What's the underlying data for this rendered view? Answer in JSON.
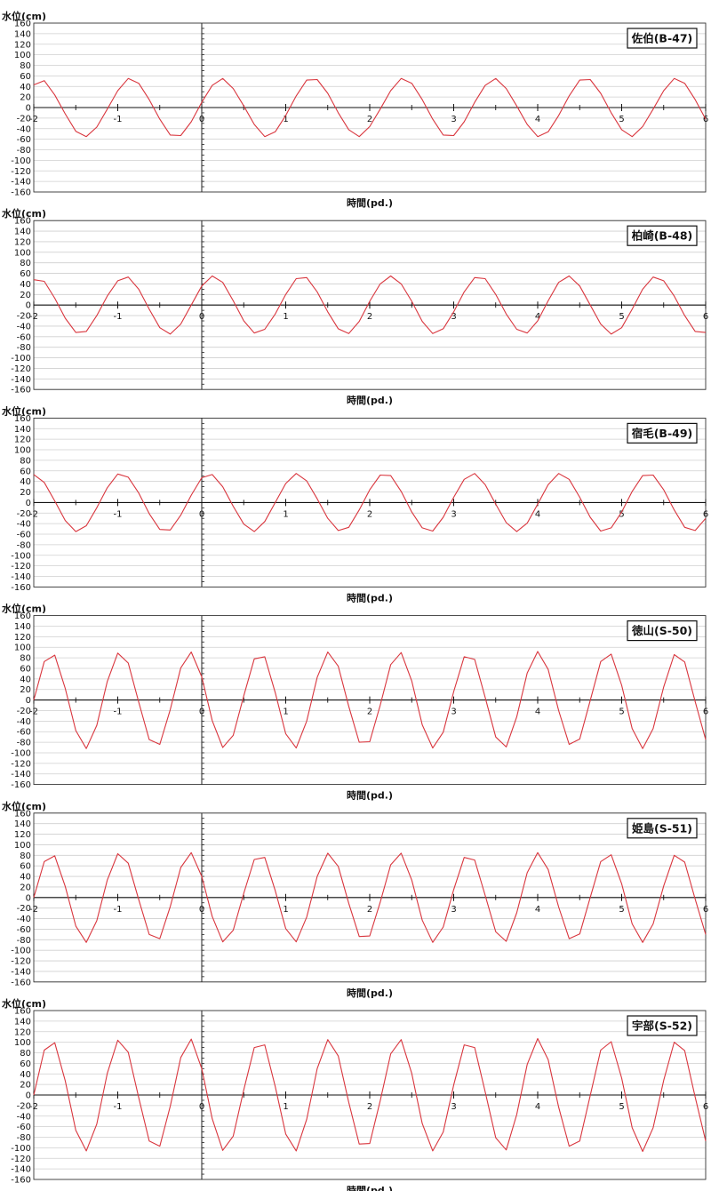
{
  "figure": {
    "ylabel": "水位(cm)",
    "xlabel": "時間(pd.)"
  },
  "chart_data": [
    {
      "type": "line",
      "title": "佐伯(B-47)",
      "xlabel": "時間(pd.)",
      "ylabel": "水位(cm)",
      "xlim": [
        -2,
        6
      ],
      "ylim": [
        -160,
        160
      ],
      "xticks": [
        -2,
        -1,
        0,
        1,
        2,
        3,
        4,
        5,
        6
      ],
      "yticks": [
        160,
        140,
        120,
        100,
        80,
        60,
        40,
        20,
        0,
        -20,
        -40,
        -60,
        -80,
        -100,
        -120,
        -140,
        -160
      ],
      "grid": true,
      "legend": "top-right",
      "series": [
        {
          "color": "#d9363e",
          "x": [
            -2.0,
            -1.875,
            -1.75,
            -1.625,
            -1.5,
            -1.375,
            -1.25,
            -1.125,
            -1.0,
            -0.875,
            -0.75,
            -0.625,
            -0.5,
            -0.375,
            -0.25,
            -0.125,
            0.0,
            0.125,
            0.25,
            0.375,
            0.5,
            0.625,
            0.75,
            0.875,
            1.0,
            1.125,
            1.25,
            1.375,
            1.5,
            1.625,
            1.75,
            1.875,
            2.0,
            2.125,
            2.25,
            2.375,
            2.5,
            2.625,
            2.75,
            2.875,
            3.0,
            3.125,
            3.25,
            3.375,
            3.5,
            3.625,
            3.75,
            3.875,
            4.0,
            4.125,
            4.25,
            4.375,
            4.5,
            4.625,
            4.75,
            4.875,
            5.0,
            5.125,
            5.25,
            5.375,
            5.5,
            5.625,
            5.75,
            5.875,
            6.0
          ],
          "values": [
            43,
            51,
            24,
            -12,
            -45,
            -55,
            -37,
            -3,
            32,
            55,
            46,
            15,
            -22,
            -52,
            -53,
            -27,
            10,
            42,
            55,
            36,
            3,
            -32,
            -55,
            -46,
            -15,
            22,
            52,
            53,
            27,
            -10,
            -42,
            -55,
            -36,
            -3,
            32,
            55,
            46,
            15,
            -22,
            -52,
            -53,
            -27,
            10,
            42,
            55,
            36,
            3,
            -32,
            -55,
            -46,
            -15,
            22,
            52,
            53,
            27,
            -10,
            -42,
            -55,
            -36,
            -3,
            32,
            55,
            46,
            15,
            -22
          ]
        }
      ]
    },
    {
      "type": "line",
      "title": "柏崎(B-48)",
      "xlabel": "時間(pd.)",
      "ylabel": "水位(cm)",
      "xlim": [
        -2,
        6
      ],
      "ylim": [
        -160,
        160
      ],
      "xticks": [
        -2,
        -1,
        0,
        1,
        2,
        3,
        4,
        5,
        6
      ],
      "yticks": [
        160,
        140,
        120,
        100,
        80,
        60,
        40,
        20,
        0,
        -20,
        -40,
        -60,
        -80,
        -100,
        -120,
        -140,
        -160
      ],
      "grid": true,
      "legend": "top-right",
      "series": [
        {
          "color": "#d9363e",
          "x": [
            -2.0,
            -1.875,
            -1.75,
            -1.625,
            -1.5,
            -1.375,
            -1.25,
            -1.125,
            -1.0,
            -0.875,
            -0.75,
            -0.625,
            -0.5,
            -0.375,
            -0.25,
            -0.125,
            0.0,
            0.125,
            0.25,
            0.375,
            0.5,
            0.625,
            0.75,
            0.875,
            1.0,
            1.125,
            1.25,
            1.375,
            1.5,
            1.625,
            1.75,
            1.875,
            2.0,
            2.125,
            2.25,
            2.375,
            2.5,
            2.625,
            2.75,
            2.875,
            3.0,
            3.125,
            3.25,
            3.375,
            3.5,
            3.625,
            3.75,
            3.875,
            4.0,
            4.125,
            4.25,
            4.375,
            4.5,
            4.625,
            4.75,
            4.875,
            5.0,
            5.125,
            5.25,
            5.375,
            5.5,
            5.625,
            5.75,
            5.875,
            6.0
          ],
          "values": [
            48,
            45,
            13,
            -25,
            -52,
            -50,
            -20,
            17,
            46,
            53,
            30,
            -8,
            -43,
            -55,
            -36,
            0,
            36,
            55,
            43,
            8,
            -30,
            -53,
            -46,
            -17,
            20,
            50,
            52,
            25,
            -13,
            -45,
            -54,
            -31,
            7,
            40,
            55,
            40,
            7,
            -31,
            -54,
            -45,
            -13,
            25,
            52,
            50,
            20,
            -17,
            -46,
            -53,
            -30,
            8,
            43,
            55,
            36,
            0,
            -36,
            -55,
            -43,
            -8,
            30,
            53,
            46,
            17,
            -20,
            -50,
            -52
          ]
        }
      ]
    },
    {
      "type": "line",
      "title": "宿毛(B-49)",
      "xlabel": "時間(pd.)",
      "ylabel": "水位(cm)",
      "xlim": [
        -2,
        6
      ],
      "ylim": [
        -160,
        160
      ],
      "xticks": [
        -2,
        -1,
        0,
        1,
        2,
        3,
        4,
        5,
        6
      ],
      "yticks": [
        160,
        140,
        120,
        100,
        80,
        60,
        40,
        20,
        0,
        -20,
        -40,
        -60,
        -80,
        -100,
        -120,
        -140,
        -160
      ],
      "grid": true,
      "legend": "top-right",
      "series": [
        {
          "color": "#d9363e",
          "x": [
            -2.0,
            -1.875,
            -1.75,
            -1.625,
            -1.5,
            -1.375,
            -1.25,
            -1.125,
            -1.0,
            -0.875,
            -0.75,
            -0.625,
            -0.5,
            -0.375,
            -0.25,
            -0.125,
            0.0,
            0.125,
            0.25,
            0.375,
            0.5,
            0.625,
            0.75,
            0.875,
            1.0,
            1.125,
            1.25,
            1.375,
            1.5,
            1.625,
            1.75,
            1.875,
            2.0,
            2.125,
            2.25,
            2.375,
            2.5,
            2.625,
            2.75,
            2.875,
            3.0,
            3.125,
            3.25,
            3.375,
            3.5,
            3.625,
            3.75,
            3.875,
            4.0,
            4.125,
            4.25,
            4.375,
            4.5,
            4.625,
            4.75,
            4.875,
            5.0,
            5.125,
            5.25,
            5.375,
            5.5,
            5.625,
            5.75,
            5.875,
            6.0
          ],
          "values": [
            53,
            38,
            3,
            -34,
            -55,
            -44,
            -10,
            28,
            54,
            48,
            18,
            -21,
            -51,
            -52,
            -24,
            14,
            47,
            53,
            30,
            -7,
            -41,
            -55,
            -36,
            0,
            36,
            55,
            41,
            7,
            -30,
            -53,
            -47,
            -14,
            24,
            52,
            51,
            21,
            -18,
            -48,
            -54,
            -28,
            10,
            44,
            55,
            34,
            -3,
            -38,
            -55,
            -39,
            -3,
            34,
            55,
            44,
            10,
            -28,
            -54,
            -48,
            -18,
            21,
            51,
            52,
            24,
            -14,
            -47,
            -53,
            -30
          ]
        }
      ]
    },
    {
      "type": "line",
      "title": "徳山(S-50)",
      "xlabel": "時間(pd.)",
      "ylabel": "水位(cm)",
      "xlim": [
        -2,
        6
      ],
      "ylim": [
        -160,
        160
      ],
      "xticks": [
        -2,
        -1,
        0,
        1,
        2,
        3,
        4,
        5,
        6
      ],
      "yticks": [
        160,
        140,
        120,
        100,
        80,
        60,
        40,
        20,
        0,
        -20,
        -40,
        -60,
        -80,
        -100,
        -120,
        -140,
        -160
      ],
      "grid": true,
      "legend": "top-right",
      "series": [
        {
          "color": "#d9363e",
          "x": [
            -2.0,
            -1.875,
            -1.75,
            -1.625,
            -1.5,
            -1.375,
            -1.25,
            -1.125,
            -1.0,
            -0.875,
            -0.75,
            -0.625,
            -0.5,
            -0.375,
            -0.25,
            -0.125,
            0.0,
            0.125,
            0.25,
            0.375,
            0.5,
            0.625,
            0.75,
            0.875,
            1.0,
            1.125,
            1.25,
            1.375,
            1.5,
            1.625,
            1.75,
            1.875,
            2.0,
            2.125,
            2.25,
            2.375,
            2.5,
            2.625,
            2.75,
            2.875,
            3.0,
            3.125,
            3.25,
            3.375,
            3.5,
            3.625,
            3.75,
            3.875,
            4.0,
            4.125,
            4.25,
            4.375,
            4.5,
            4.625,
            4.75,
            4.875,
            5.0,
            5.125,
            5.25,
            5.375,
            5.5,
            5.625,
            5.75,
            5.875,
            6.0
          ],
          "values": [
            0,
            73,
            85,
            22,
            -58,
            -92,
            -48,
            35,
            89,
            70,
            -4,
            -75,
            -84,
            -18,
            61,
            91,
            44,
            -39,
            -90,
            -67,
            8,
            78,
            82,
            14,
            -64,
            -91,
            -40,
            43,
            91,
            64,
            -12,
            -80,
            -79,
            -10,
            67,
            90,
            36,
            -47,
            -91,
            -61,
            16,
            82,
            77,
            5,
            -70,
            -89,
            -32,
            51,
            92,
            58,
            -20,
            -84,
            -74,
            -1,
            73,
            87,
            28,
            -54,
            -92,
            -54,
            25,
            86,
            72,
            -3,
            -75
          ]
        }
      ]
    },
    {
      "type": "line",
      "title": "姫島(S-51)",
      "xlabel": "時間(pd.)",
      "ylabel": "水位(cm)",
      "xlim": [
        -2,
        6
      ],
      "ylim": [
        -160,
        160
      ],
      "xticks": [
        -2,
        -1,
        0,
        1,
        2,
        3,
        4,
        5,
        6
      ],
      "yticks": [
        160,
        140,
        120,
        100,
        80,
        60,
        40,
        20,
        0,
        -20,
        -40,
        -60,
        -80,
        -100,
        -120,
        -140,
        -160
      ],
      "grid": true,
      "legend": "top-right",
      "series": [
        {
          "color": "#d9363e",
          "x": [
            -2.0,
            -1.875,
            -1.75,
            -1.625,
            -1.5,
            -1.375,
            -1.25,
            -1.125,
            -1.0,
            -0.875,
            -0.75,
            -0.625,
            -0.5,
            -0.375,
            -0.25,
            -0.125,
            0.0,
            0.125,
            0.25,
            0.375,
            0.5,
            0.625,
            0.75,
            0.875,
            1.0,
            1.125,
            1.25,
            1.375,
            1.5,
            1.625,
            1.75,
            1.875,
            2.0,
            2.125,
            2.25,
            2.375,
            2.5,
            2.625,
            2.75,
            2.875,
            3.0,
            3.125,
            3.25,
            3.375,
            3.5,
            3.625,
            3.75,
            3.875,
            4.0,
            4.125,
            4.25,
            4.375,
            4.5,
            4.625,
            4.75,
            4.875,
            5.0,
            5.125,
            5.25,
            5.375,
            5.5,
            5.625,
            5.75,
            5.875,
            6.0
          ],
          "values": [
            0,
            68,
            79,
            21,
            -54,
            -85,
            -44,
            33,
            83,
            65,
            -4,
            -70,
            -78,
            -17,
            57,
            85,
            40,
            -36,
            -84,
            -62,
            8,
            72,
            76,
            13,
            -59,
            -84,
            -37,
            40,
            84,
            59,
            -11,
            -74,
            -73,
            -9,
            62,
            84,
            33,
            -43,
            -85,
            -56,
            15,
            76,
            71,
            4,
            -65,
            -83,
            -29,
            47,
            85,
            53,
            -18,
            -78,
            -69,
            0,
            68,
            81,
            26,
            -50,
            -85,
            -50,
            22,
            80,
            67,
            -3,
            -70
          ]
        }
      ]
    },
    {
      "type": "line",
      "title": "宇部(S-52)",
      "xlabel": "時間(pd.)",
      "ylabel": "水位(cm)",
      "xlim": [
        -2,
        6
      ],
      "ylim": [
        -160,
        160
      ],
      "xticks": [
        -2,
        -1,
        0,
        1,
        2,
        3,
        4,
        5,
        6
      ],
      "yticks": [
        160,
        140,
        120,
        100,
        80,
        60,
        40,
        20,
        0,
        -20,
        -40,
        -60,
        -80,
        -100,
        -120,
        -140,
        -160
      ],
      "grid": true,
      "legend": "top-right",
      "series": [
        {
          "color": "#d9363e",
          "x": [
            -2.0,
            -1.875,
            -1.75,
            -1.625,
            -1.5,
            -1.375,
            -1.25,
            -1.125,
            -1.0,
            -0.875,
            -0.75,
            -0.625,
            -0.5,
            -0.375,
            -0.25,
            -0.125,
            0.0,
            0.125,
            0.25,
            0.375,
            0.5,
            0.625,
            0.75,
            0.875,
            1.0,
            1.125,
            1.25,
            1.375,
            1.5,
            1.625,
            1.75,
            1.875,
            2.0,
            2.125,
            2.25,
            2.375,
            2.5,
            2.625,
            2.75,
            2.875,
            3.0,
            3.125,
            3.25,
            3.375,
            3.5,
            3.625,
            3.75,
            3.875,
            4.0,
            4.125,
            4.25,
            4.375,
            4.5,
            4.625,
            4.75,
            4.875,
            5.0,
            5.125,
            5.25,
            5.375,
            5.5,
            5.625,
            5.75,
            5.875,
            6.0
          ],
          "values": [
            0,
            85,
            99,
            27,
            -67,
            -106,
            -55,
            41,
            104,
            81,
            -5,
            -87,
            -97,
            -21,
            71,
            106,
            50,
            -45,
            -105,
            -78,
            10,
            90,
            95,
            16,
            -74,
            -106,
            -46,
            50,
            105,
            74,
            -14,
            -93,
            -92,
            -11,
            78,
            105,
            41,
            -54,
            -106,
            -70,
            19,
            95,
            90,
            6,
            -81,
            -104,
            -37,
            58,
            107,
            67,
            -23,
            -97,
            -87,
            -1,
            85,
            101,
            32,
            -62,
            -107,
            -62,
            28,
            100,
            84,
            -4,
            -87
          ]
        }
      ]
    }
  ]
}
